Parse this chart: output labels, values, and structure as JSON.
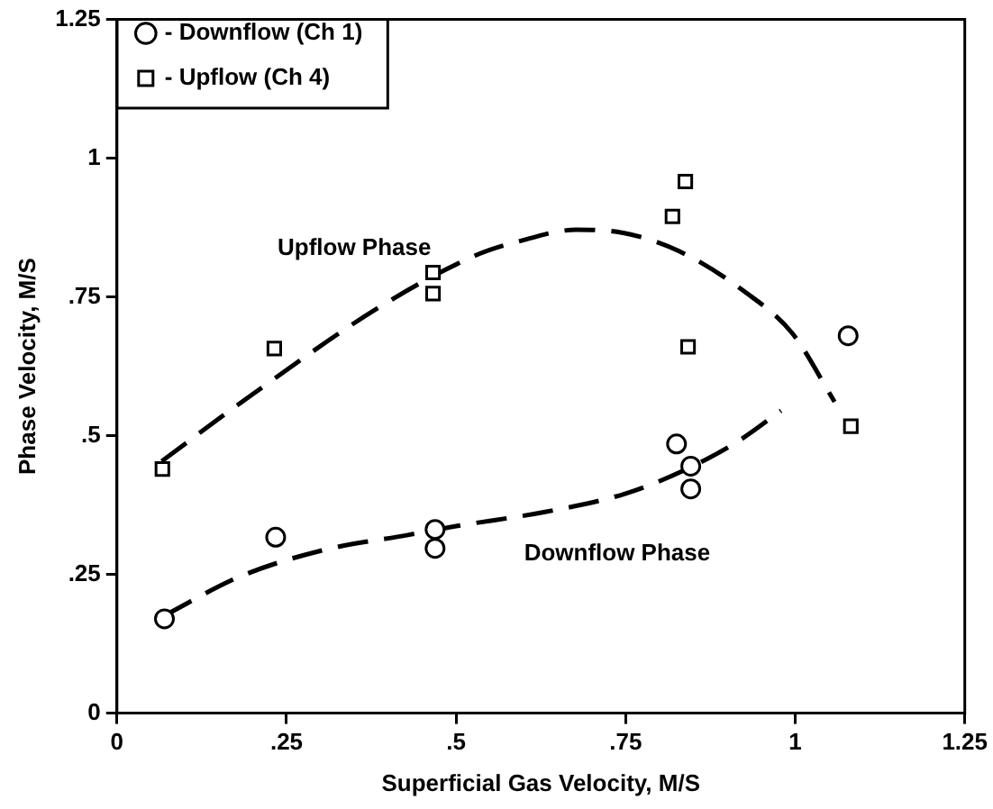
{
  "chart_data": {
    "type": "scatter",
    "xlabel": "Superficial Gas Velocity, M/S",
    "ylabel": "Phase Velocity, M/S",
    "xlim": [
      0,
      1.25
    ],
    "xticks": [
      0,
      {
        "value": 0.25,
        "label": ".25"
      },
      {
        "value": 0.5,
        "label": ".5"
      },
      {
        "value": 0.75,
        "label": ".75"
      },
      1,
      1.25
    ],
    "ylim": [
      0,
      1.25
    ],
    "yticks": [
      0,
      {
        "value": 0.25,
        "label": ".25"
      },
      {
        "value": 0.5,
        "label": ".5"
      },
      {
        "value": 0.75,
        "label": ".75"
      },
      1,
      1.25
    ],
    "grid": false,
    "legend": "top left",
    "series": [
      {
        "name": "- Downflow (Ch 1)",
        "type": "scatter",
        "marker": "circle",
        "color": "#000000",
        "x": [
          0.07,
          0.234,
          0.469,
          0.469,
          0.825,
          0.846,
          0.846,
          1.078
        ],
        "values": [
          0.17,
          0.317,
          0.331,
          0.297,
          0.485,
          0.445,
          0.404,
          0.68
        ]
      },
      {
        "name": "- Upflow (Ch 4)",
        "type": "scatter",
        "marker": "square",
        "color": "#000000",
        "x": [
          0.067,
          0.232,
          0.466,
          0.466,
          0.838,
          0.819,
          0.842,
          1.082
        ],
        "values": [
          0.44,
          0.657,
          0.794,
          0.756,
          0.958,
          0.895,
          0.66,
          0.517
        ]
      },
      {
        "type": "line",
        "marker": "none",
        "line_style": "dashed",
        "color": "#000000",
        "x": [
          0.066,
          0.19,
          0.394,
          0.535,
          0.589,
          0.677,
          0.748,
          0.828,
          0.926,
          0.996,
          1.058
        ],
        "values": [
          0.454,
          0.566,
          0.737,
          0.828,
          0.849,
          0.871,
          0.865,
          0.833,
          0.759,
          0.684,
          0.561
        ]
      },
      {
        "type": "line",
        "marker": "none",
        "line_style": "dashed",
        "color": "#000000",
        "x": [
          0.07,
          0.181,
          0.305,
          0.429,
          0.5,
          0.633,
          0.748,
          0.837,
          0.917,
          0.979
        ],
        "values": [
          0.176,
          0.246,
          0.294,
          0.321,
          0.337,
          0.363,
          0.395,
          0.438,
          0.491,
          0.545
        ]
      }
    ],
    "annotations": [
      "Upflow Phase",
      "Downflow Phase"
    ]
  }
}
